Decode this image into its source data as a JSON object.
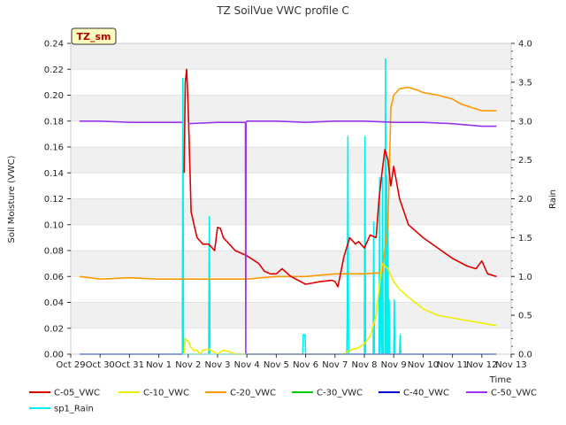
{
  "chart_data": {
    "type": "line",
    "title": "TZ SoilVue VWC profile C",
    "badge": "TZ_sm",
    "xlabel": "Time",
    "ylabel": "Soil Moisture (VWC)",
    "y2label": "Rain",
    "xlim": [
      0,
      15
    ],
    "ylim": [
      0,
      0.24
    ],
    "y2lim": [
      0,
      4.0
    ],
    "x_ticks": [
      {
        "pos": 0,
        "label": "Oct 29"
      },
      {
        "pos": 1,
        "label": "Oct 30"
      },
      {
        "pos": 2,
        "label": "Oct 31"
      },
      {
        "pos": 3,
        "label": "Nov 1"
      },
      {
        "pos": 4,
        "label": "Nov 2"
      },
      {
        "pos": 5,
        "label": "Nov 3"
      },
      {
        "pos": 6,
        "label": "Nov 4"
      },
      {
        "pos": 7,
        "label": "Nov 5"
      },
      {
        "pos": 8,
        "label": "Nov 6"
      },
      {
        "pos": 9,
        "label": "Nov 7"
      },
      {
        "pos": 10,
        "label": "Nov 8"
      },
      {
        "pos": 11,
        "label": "Nov 9"
      },
      {
        "pos": 12,
        "label": "Nov 10"
      },
      {
        "pos": 13,
        "label": "Nov 11"
      },
      {
        "pos": 14,
        "label": "Nov 12"
      },
      {
        "pos": 15,
        "label": "Nov 13"
      }
    ],
    "y_ticks": [
      "0.00",
      "0.02",
      "0.04",
      "0.06",
      "0.08",
      "0.10",
      "0.12",
      "0.14",
      "0.16",
      "0.18",
      "0.20",
      "0.22",
      "0.24"
    ],
    "y2_ticks": [
      "0.0",
      "0.5",
      "1.0",
      "1.5",
      "2.0",
      "2.5",
      "3.0",
      "3.5",
      "4.0"
    ],
    "grid": "horizontal-bands",
    "legend_position": "bottom",
    "series": [
      {
        "name": "C-05_VWC",
        "color": "#dd0000",
        "axis": "left",
        "x": [
          0.3,
          3.8,
          3.86,
          3.9,
          3.95,
          4.0,
          4.05,
          4.1,
          4.2,
          4.3,
          4.5,
          4.7,
          4.9,
          5.0,
          5.1,
          5.2,
          5.4,
          5.6,
          5.8,
          6.0,
          6.2,
          6.4,
          6.6,
          6.8,
          7.0,
          7.2,
          7.5,
          8.0,
          8.5,
          8.9,
          9.0,
          9.1,
          9.3,
          9.5,
          9.7,
          9.8,
          10.0,
          10.2,
          10.4,
          10.5,
          10.6,
          10.7,
          10.8,
          10.9,
          11.0,
          11.2,
          11.5,
          12.0,
          12.5,
          13.0,
          13.5,
          13.8,
          14.0,
          14.2,
          14.5
        ],
        "y": [
          null,
          null,
          0.14,
          0.21,
          0.22,
          0.19,
          0.15,
          0.11,
          0.1,
          0.09,
          0.085,
          0.085,
          0.08,
          0.098,
          0.097,
          0.09,
          0.085,
          0.08,
          0.078,
          0.076,
          0.073,
          0.07,
          0.064,
          0.062,
          0.062,
          0.066,
          0.06,
          0.054,
          0.056,
          0.057,
          0.056,
          0.052,
          0.075,
          0.09,
          0.085,
          0.087,
          0.082,
          0.092,
          0.09,
          0.12,
          0.14,
          0.158,
          0.15,
          0.13,
          0.145,
          0.12,
          0.1,
          0.09,
          0.082,
          0.074,
          0.068,
          0.066,
          0.072,
          0.062,
          0.06
        ]
      },
      {
        "name": "C-10_VWC",
        "color": "#eeee00",
        "axis": "left",
        "x": [
          0.3,
          3.8,
          3.86,
          3.9,
          4.0,
          4.1,
          4.2,
          4.3,
          4.4,
          4.5,
          4.7,
          5.0,
          5.2,
          5.4,
          5.6,
          5.8,
          6.0,
          9.0,
          9.3,
          9.5,
          9.8,
          10.0,
          10.2,
          10.4,
          10.6,
          10.8,
          11.0,
          11.2,
          11.5,
          12.0,
          12.5,
          13.0,
          13.5,
          14.0,
          14.5
        ],
        "y": [
          null,
          null,
          0.0,
          0.012,
          0.01,
          0.005,
          0.003,
          0.003,
          0.0,
          0.003,
          0.004,
          0.0,
          0.003,
          0.002,
          0.0,
          0.0,
          0.0,
          0.0,
          0.0,
          0.003,
          0.005,
          0.008,
          0.014,
          0.03,
          0.07,
          0.066,
          0.056,
          0.05,
          0.044,
          0.035,
          0.03,
          0.028,
          0.026,
          0.024,
          0.022
        ]
      },
      {
        "name": "C-20_VWC",
        "color": "#ff9900",
        "axis": "left",
        "x": [
          0.3,
          1.0,
          2.0,
          3.0,
          4.0,
          5.0,
          6.0,
          7.0,
          8.0,
          9.0,
          10.0,
          10.6,
          10.8,
          10.85,
          10.9,
          11.0,
          11.2,
          11.5,
          11.8,
          12.0,
          12.5,
          13.0,
          13.3,
          13.6,
          14.0,
          14.5
        ],
        "y": [
          0.06,
          0.058,
          0.059,
          0.058,
          0.058,
          0.058,
          0.058,
          0.06,
          0.06,
          0.062,
          0.062,
          0.063,
          0.1,
          0.14,
          0.19,
          0.2,
          0.205,
          0.206,
          0.204,
          0.202,
          0.2,
          0.197,
          0.193,
          0.191,
          0.188,
          0.188
        ]
      },
      {
        "name": "C-30_VWC",
        "color": "#00cc00",
        "axis": "left",
        "x": [],
        "y": []
      },
      {
        "name": "C-40_VWC",
        "color": "#0000cc",
        "axis": "left",
        "x": [
          0.3,
          3.8,
          3.86,
          3.9,
          5.95,
          6.0,
          6.05,
          14.5
        ],
        "y": [
          0.0,
          0.0,
          null,
          null,
          null,
          0.0,
          0.0,
          0.0
        ]
      },
      {
        "name": "C-50_VWC",
        "color": "#9933ee",
        "axis": "left",
        "x": [
          0.3,
          1.0,
          2.0,
          3.0,
          3.8,
          3.86,
          3.9,
          4.0,
          5.0,
          5.9,
          5.95,
          5.96,
          5.97,
          6.0,
          7.0,
          8.0,
          9.0,
          10.0,
          11.0,
          12.0,
          13.0,
          14.0,
          14.5
        ],
        "y": [
          0.18,
          0.18,
          0.179,
          0.179,
          0.179,
          null,
          null,
          0.178,
          0.179,
          0.179,
          0.179,
          0.0,
          0.179,
          0.18,
          0.18,
          0.179,
          0.18,
          0.18,
          0.179,
          0.179,
          0.178,
          0.176,
          0.176
        ]
      },
      {
        "name": "sp1_Rain",
        "color": "#00eeee",
        "axis": "right",
        "x": [
          0.3,
          3.8,
          3.82,
          3.84,
          3.86,
          3.88,
          4.7,
          4.72,
          4.74,
          7.9,
          7.92,
          7.98,
          8.0,
          9.4,
          9.42,
          9.44,
          9.46,
          9.48,
          9.5,
          10.0,
          10.02,
          10.04,
          10.06,
          10.3,
          10.32,
          10.34,
          10.5,
          10.52,
          10.54,
          10.56,
          10.6,
          10.62,
          10.64,
          10.7,
          10.72,
          10.74,
          10.76,
          10.78,
          10.8,
          10.82,
          10.84,
          10.86,
          10.9,
          11.0,
          11.02,
          11.04,
          11.2,
          11.22,
          11.24,
          14.0,
          14.2,
          14.5
        ],
        "y": [
          0.0,
          0.0,
          3.55,
          0.0,
          0.0,
          0.0,
          0.0,
          1.77,
          0.0,
          0.0,
          0.25,
          0.25,
          0.0,
          0.0,
          0.5,
          2.8,
          0.0,
          0.0,
          0.0,
          0.0,
          2.8,
          0.0,
          0.0,
          0.0,
          1.7,
          0.0,
          0.0,
          2.27,
          0.0,
          1.0,
          0.0,
          2.27,
          0.0,
          0.0,
          3.8,
          0.0,
          2.3,
          0.0,
          1.8,
          0.0,
          0.7,
          0.0,
          0.0,
          0.0,
          0.7,
          0.0,
          0.0,
          0.25,
          0.0,
          0.0,
          0.0,
          0.0
        ]
      }
    ]
  }
}
